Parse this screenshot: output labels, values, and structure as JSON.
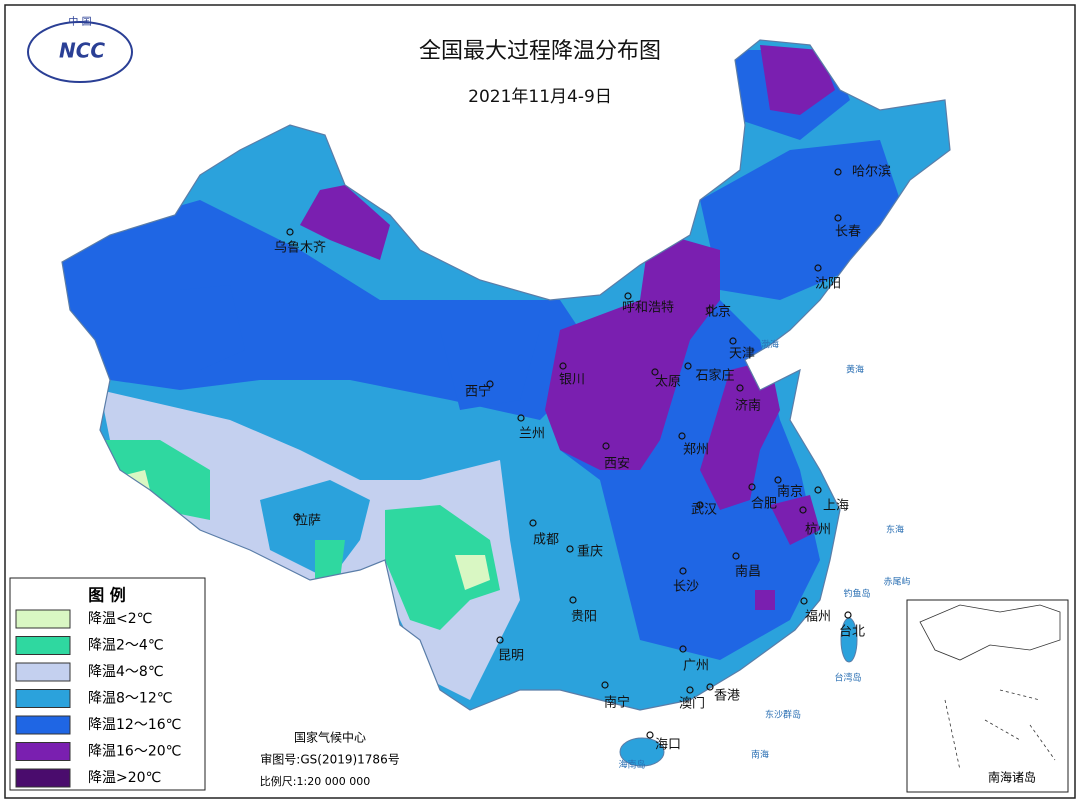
{
  "header": {
    "title": "全国最大过程降温分布图",
    "date": "2021年11月4-9日"
  },
  "logo": {
    "top": "中 国",
    "text": "NCC"
  },
  "legend": {
    "title": "图 例",
    "items": [
      {
        "label": "降温<2℃",
        "color": "#d9f7c3"
      },
      {
        "label": "降温2～4℃",
        "color": "#2fd8a0"
      },
      {
        "label": "降温4～8℃",
        "color": "#c4d0ef"
      },
      {
        "label": "降温8～12℃",
        "color": "#2ba2dc"
      },
      {
        "label": "降温12～16℃",
        "color": "#1f66e4"
      },
      {
        "label": "降温16～20℃",
        "color": "#7a1fb0"
      },
      {
        "label": "降温>20℃",
        "color": "#4a0c6d"
      }
    ]
  },
  "cities": [
    "乌鲁木齐",
    "哈尔滨",
    "长春",
    "沈阳",
    "呼和浩特",
    "北京",
    "天津",
    "石家庄",
    "太原",
    "济南",
    "银川",
    "西宁",
    "兰州",
    "西安",
    "郑州",
    "南京",
    "合肥",
    "上海",
    "杭州",
    "武汉",
    "成都",
    "重庆",
    "长沙",
    "南昌",
    "贵阳",
    "福州",
    "台北",
    "昆明",
    "广州",
    "香港",
    "澳门",
    "南宁",
    "海口",
    "拉萨"
  ],
  "seas": [
    "渤海",
    "黄海",
    "东海",
    "南海",
    "台湾岛",
    "海南岛",
    "东沙群岛",
    "钓鱼岛",
    "赤尾屿"
  ],
  "footer": {
    "org": "国家气候中心",
    "approval": "审图号:GS(2019)1786号",
    "scale": "比例尺:1:20 000 000"
  },
  "inset": {
    "label": "南海诸岛"
  }
}
